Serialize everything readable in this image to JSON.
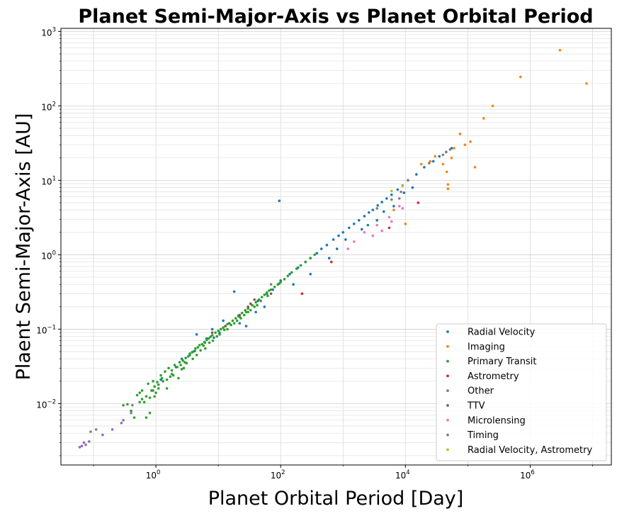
{
  "chart_data": {
    "type": "scatter",
    "title": "Planet Semi-Major-Axis vs Planet Orbital Period",
    "xlabel": "Planet Orbital Period [Day]",
    "ylabel": "Plaent Semi-Major-Axis [AU]",
    "x_scale": "log",
    "y_scale": "log",
    "xlim": [
      0.03,
      20000000
    ],
    "ylim": [
      0.0015,
      1100
    ],
    "x_ticks": [
      {
        "base": "10",
        "exp": "0",
        "value": 1
      },
      {
        "base": "10",
        "exp": "2",
        "value": 100
      },
      {
        "base": "10",
        "exp": "4",
        "value": 10000
      },
      {
        "base": "10",
        "exp": "6",
        "value": 1000000
      }
    ],
    "y_ticks": [
      {
        "base": "10",
        "exp": "−2",
        "value": 0.01
      },
      {
        "base": "10",
        "exp": "−1",
        "value": 0.1
      },
      {
        "base": "10",
        "exp": "0",
        "value": 1
      },
      {
        "base": "10",
        "exp": "1",
        "value": 10
      },
      {
        "base": "10",
        "exp": "2",
        "value": 100
      },
      {
        "base": "10",
        "exp": "3",
        "value": 1000
      }
    ],
    "grid": true,
    "legend_position": "lower-right",
    "series": [
      {
        "name": "Radial Velocity",
        "color": "#1f77b4",
        "points": [
          [
            1.2,
            0.021
          ],
          [
            2.1,
            0.031
          ],
          [
            3.5,
            0.045
          ],
          [
            4.2,
            0.051
          ],
          [
            6.1,
            0.066
          ],
          [
            8.5,
            0.077
          ],
          [
            10.5,
            0.09
          ],
          [
            15,
            0.12
          ],
          [
            21,
            0.15
          ],
          [
            30,
            0.19
          ],
          [
            43,
            0.24
          ],
          [
            60,
            0.3
          ],
          [
            75,
            0.34
          ],
          [
            100,
            0.45
          ],
          [
            140,
            0.55
          ],
          [
            190,
            0.67
          ],
          [
            250,
            0.8
          ],
          [
            300,
            0.9
          ],
          [
            380,
            1.05
          ],
          [
            450,
            1.2
          ],
          [
            550,
            1.35
          ],
          [
            700,
            1.6
          ],
          [
            850,
            1.8
          ],
          [
            1000,
            2.0
          ],
          [
            1250,
            2.3
          ],
          [
            1500,
            2.6
          ],
          [
            1800,
            2.9
          ],
          [
            2200,
            3.3
          ],
          [
            2600,
            3.7
          ],
          [
            3000,
            4.0
          ],
          [
            3600,
            4.6
          ],
          [
            4200,
            5.1
          ],
          [
            5000,
            5.7
          ],
          [
            6000,
            6.4
          ],
          [
            7500,
            7.5
          ],
          [
            9000,
            8.5
          ],
          [
            11000,
            10
          ],
          [
            15000,
            12
          ],
          [
            20000,
            15
          ],
          [
            28000,
            18
          ],
          [
            35000,
            21
          ],
          [
            45000,
            24
          ],
          [
            55000,
            27
          ],
          [
            95,
            5.3
          ],
          [
            4.5,
            0.085
          ],
          [
            6.5,
            0.075
          ],
          [
            28,
            0.11
          ],
          [
            300,
            0.55
          ],
          [
            800,
            1.2
          ],
          [
            2000,
            2.2
          ],
          [
            3500,
            2.9
          ],
          [
            18,
            0.32
          ],
          [
            40,
            0.17
          ],
          [
            600,
            0.9
          ],
          [
            1100,
            1.6
          ],
          [
            2500,
            2.5
          ],
          [
            4500,
            3.8
          ],
          [
            6500,
            4.5
          ],
          [
            9500,
            6.8
          ],
          [
            13000,
            8
          ],
          [
            12,
            0.13
          ],
          [
            2.6,
            0.04
          ],
          [
            55,
            0.2
          ],
          [
            160,
            0.4
          ],
          [
            8,
            0.1
          ],
          [
            22,
            0.12
          ]
        ]
      },
      {
        "name": "Imaging",
        "color": "#ff7f0e",
        "points": [
          [
            8000000,
            200
          ],
          [
            3000000,
            560
          ],
          [
            700000,
            245
          ],
          [
            250000,
            100
          ],
          [
            180000,
            68
          ],
          [
            130000,
            15
          ],
          [
            110000,
            33
          ],
          [
            90000,
            30
          ],
          [
            75000,
            42
          ],
          [
            60000,
            27
          ],
          [
            55000,
            20
          ],
          [
            48000,
            8.8
          ],
          [
            48000,
            7.7
          ],
          [
            46000,
            13
          ],
          [
            40000,
            16.5
          ],
          [
            30000,
            21
          ],
          [
            25000,
            18
          ],
          [
            18000,
            16.5
          ],
          [
            10000,
            2.6
          ],
          [
            6500,
            4.0
          ]
        ]
      },
      {
        "name": "Primary Transit",
        "color": "#2ca02c",
        "points": [
          [
            0.3,
            0.0095
          ],
          [
            0.35,
            0.0098
          ],
          [
            0.4,
            0.008
          ],
          [
            0.45,
            0.0065
          ],
          [
            0.5,
            0.013
          ],
          [
            0.55,
            0.014
          ],
          [
            0.6,
            0.015
          ],
          [
            0.65,
            0.0105
          ],
          [
            0.7,
            0.0065
          ],
          [
            0.75,
            0.0185
          ],
          [
            0.8,
            0.0075
          ],
          [
            0.85,
            0.015
          ],
          [
            0.9,
            0.02
          ],
          [
            0.95,
            0.0125
          ],
          [
            1.05,
            0.0195
          ],
          [
            1.1,
            0.016
          ],
          [
            1.2,
            0.024
          ],
          [
            1.3,
            0.02
          ],
          [
            1.4,
            0.027
          ],
          [
            1.5,
            0.021
          ],
          [
            1.6,
            0.03
          ],
          [
            1.8,
            0.028
          ],
          [
            1.9,
            0.024
          ],
          [
            2.0,
            0.033
          ],
          [
            2.2,
            0.031
          ],
          [
            2.4,
            0.036
          ],
          [
            2.5,
            0.033
          ],
          [
            2.7,
            0.038
          ],
          [
            2.9,
            0.036
          ],
          [
            3.0,
            0.041
          ],
          [
            3.3,
            0.043
          ],
          [
            3.5,
            0.047
          ],
          [
            3.8,
            0.049
          ],
          [
            4.0,
            0.05
          ],
          [
            4.3,
            0.055
          ],
          [
            4.7,
            0.057
          ],
          [
            5.0,
            0.061
          ],
          [
            5.5,
            0.063
          ],
          [
            6.0,
            0.067
          ],
          [
            6.5,
            0.072
          ],
          [
            7.0,
            0.075
          ],
          [
            7.5,
            0.079
          ],
          [
            8.0,
            0.083
          ],
          [
            9.0,
            0.09
          ],
          [
            10,
            0.095
          ],
          [
            11,
            0.1
          ],
          [
            12,
            0.105
          ],
          [
            13,
            0.11
          ],
          [
            14,
            0.117
          ],
          [
            15,
            0.12
          ],
          [
            17,
            0.13
          ],
          [
            19,
            0.14
          ],
          [
            21,
            0.152
          ],
          [
            24,
            0.165
          ],
          [
            27,
            0.18
          ],
          [
            30,
            0.19
          ],
          [
            35,
            0.21
          ],
          [
            40,
            0.23
          ],
          [
            45,
            0.25
          ],
          [
            50,
            0.27
          ],
          [
            55,
            0.29
          ],
          [
            60,
            0.31
          ],
          [
            70,
            0.34
          ],
          [
            80,
            0.37
          ],
          [
            90,
            0.4
          ],
          [
            100,
            0.43
          ],
          [
            115,
            0.47
          ],
          [
            130,
            0.52
          ],
          [
            150,
            0.58
          ],
          [
            180,
            0.65
          ],
          [
            210,
            0.72
          ],
          [
            250,
            0.8
          ],
          [
            300,
            0.9
          ],
          [
            350,
            1.0
          ],
          [
            1.5,
            0.016
          ],
          [
            1.8,
            0.025
          ],
          [
            2.3,
            0.022
          ],
          [
            3.1,
            0.035
          ],
          [
            4.5,
            0.045
          ],
          [
            6.2,
            0.055
          ],
          [
            8.2,
            0.07
          ],
          [
            10.5,
            0.085
          ],
          [
            14,
            0.1
          ],
          [
            18,
            0.12
          ],
          [
            23,
            0.14
          ],
          [
            30,
            0.17
          ],
          [
            38,
            0.2
          ],
          [
            48,
            0.24
          ],
          [
            62,
            0.28
          ],
          [
            1.7,
            0.023
          ],
          [
            2.8,
            0.03
          ],
          [
            3.9,
            0.04
          ],
          [
            5.2,
            0.052
          ],
          [
            7.2,
            0.066
          ],
          [
            9.5,
            0.08
          ],
          [
            12.5,
            0.098
          ],
          [
            16,
            0.114
          ],
          [
            20,
            0.13
          ],
          [
            26,
            0.155
          ],
          [
            33,
            0.18
          ],
          [
            42,
            0.21
          ],
          [
            0.8,
            0.012
          ],
          [
            0.9,
            0.015
          ],
          [
            1.1,
            0.018
          ],
          [
            2.6,
            0.029
          ],
          [
            5.8,
            0.06
          ],
          [
            22,
            0.147
          ],
          [
            65,
            0.33
          ],
          [
            95,
            0.41
          ],
          [
            28,
            0.17
          ],
          [
            1.25,
            0.022
          ],
          [
            0.6,
            0.0115
          ],
          [
            0.7,
            0.0125
          ],
          [
            0.95,
            0.017
          ],
          [
            1.0,
            0.014
          ],
          [
            0.55,
            0.0105
          ]
        ]
      },
      {
        "name": "Astrometry",
        "color": "#d62728",
        "points": [
          [
            650,
            0.8
          ],
          [
            220,
            0.3
          ],
          [
            5500,
            2.3
          ],
          [
            16000,
            5.0
          ]
        ]
      },
      {
        "name": "Other",
        "color": "#9467bd",
        "points": [
          [
            0.06,
            0.0026
          ],
          [
            0.065,
            0.0027
          ],
          [
            0.07,
            0.003
          ],
          [
            0.075,
            0.0028
          ],
          [
            0.085,
            0.0031
          ],
          [
            0.14,
            0.0038
          ],
          [
            0.2,
            0.0045
          ],
          [
            0.28,
            0.0055
          ]
        ]
      },
      {
        "name": "TTV",
        "color": "#8c564b",
        "points": [
          [
            13,
            0.11
          ],
          [
            22,
            0.155
          ],
          [
            30,
            0.2
          ],
          [
            33,
            0.22
          ],
          [
            38,
            0.25
          ],
          [
            70,
            0.3
          ],
          [
            8,
            0.09
          ]
        ]
      },
      {
        "name": "Microlensing",
        "color": "#e377c2",
        "points": [
          [
            3000,
            1.8
          ],
          [
            5500,
            3.2
          ],
          [
            4200,
            2.1
          ],
          [
            8000,
            4.5
          ],
          [
            1500,
            1.5
          ],
          [
            1200,
            1.2
          ],
          [
            9000,
            4.2
          ],
          [
            2200,
            2.0
          ],
          [
            6000,
            2.8
          ],
          [
            3500,
            2.5
          ]
        ]
      },
      {
        "name": "Timing",
        "color": "#7f7f7f",
        "points": [
          [
            0.09,
            0.0042
          ],
          [
            0.11,
            0.0045
          ],
          [
            0.3,
            0.006
          ],
          [
            0.4,
            0.0075
          ],
          [
            0.42,
            0.0095
          ],
          [
            70,
            0.4
          ],
          [
            3500,
            4.2
          ],
          [
            6000,
            5.5
          ],
          [
            8500,
            7.0
          ],
          [
            11000,
            10
          ],
          [
            24000,
            17
          ],
          [
            40000,
            22
          ],
          [
            45000,
            24
          ],
          [
            52000,
            26
          ],
          [
            8000,
            5.7
          ]
        ]
      },
      {
        "name": "Radial Velocity, Astrometry",
        "color": "#bcbd22",
        "points": [
          [
            6000,
            7.2
          ],
          [
            9000,
            8.4
          ]
        ]
      }
    ]
  }
}
